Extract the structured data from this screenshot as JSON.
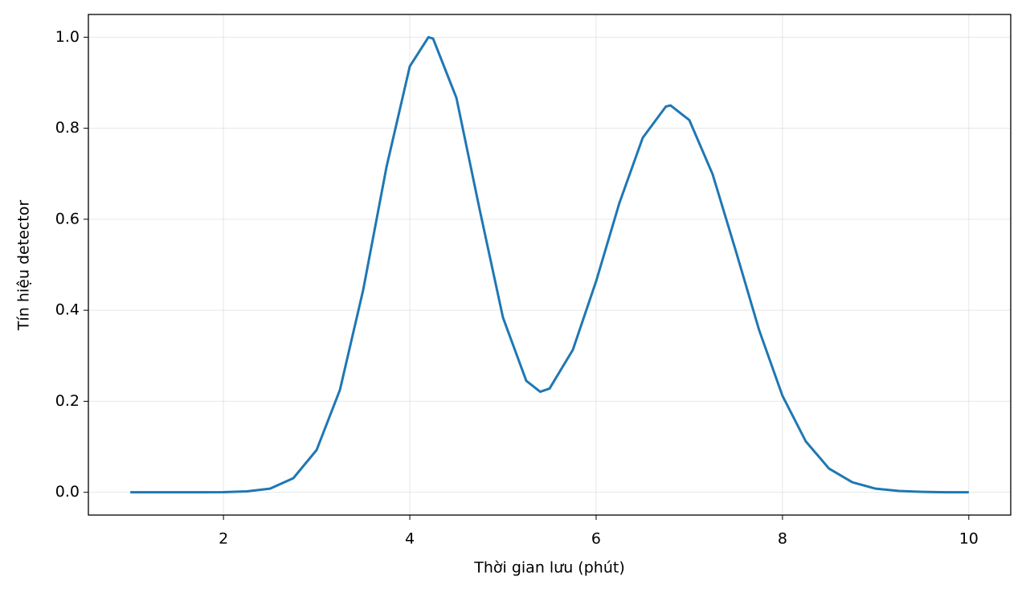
{
  "chart_data": {
    "type": "line",
    "x_label": "Thời gian lưu (phút)",
    "y_label": "Tín hiệu detector",
    "x": [
      1,
      1.25,
      1.5,
      1.75,
      2,
      2.25,
      2.5,
      2.75,
      3,
      3.25,
      3.5,
      3.75,
      4,
      4.2,
      4.25,
      4.5,
      4.75,
      5,
      5.25,
      5.4,
      5.5,
      5.75,
      6,
      6.25,
      6.5,
      6.75,
      6.8,
      7,
      7.25,
      7.5,
      7.75,
      8,
      8.25,
      8.5,
      8.75,
      9,
      9.25,
      9.5,
      9.75,
      10
    ],
    "values": [
      0,
      0,
      0,
      0,
      0.0003,
      0.002,
      0.008,
      0.031,
      0.093,
      0.225,
      0.445,
      0.715,
      0.936,
      1.0,
      0.997,
      0.867,
      0.621,
      0.384,
      0.245,
      0.221,
      0.228,
      0.313,
      0.464,
      0.636,
      0.779,
      0.848,
      0.85,
      0.818,
      0.699,
      0.53,
      0.356,
      0.212,
      0.112,
      0.052,
      0.022,
      0.008,
      0.003,
      0.001,
      0,
      0
    ],
    "color": "#1f77b4",
    "xlim": [
      0.55,
      10.45
    ],
    "ylim": [
      -0.05,
      1.05
    ],
    "xticks": [
      2,
      4,
      6,
      8,
      10
    ],
    "yticks": [
      {
        "value": 0,
        "label": "0.0"
      },
      {
        "value": 0.2,
        "label": "0.2"
      },
      {
        "value": 0.4,
        "label": "0.4"
      },
      {
        "value": 0.6,
        "label": "0.6"
      },
      {
        "value": 0.8,
        "label": "0.8"
      },
      {
        "value": 1,
        "label": "1.0"
      }
    ],
    "grid": true
  }
}
